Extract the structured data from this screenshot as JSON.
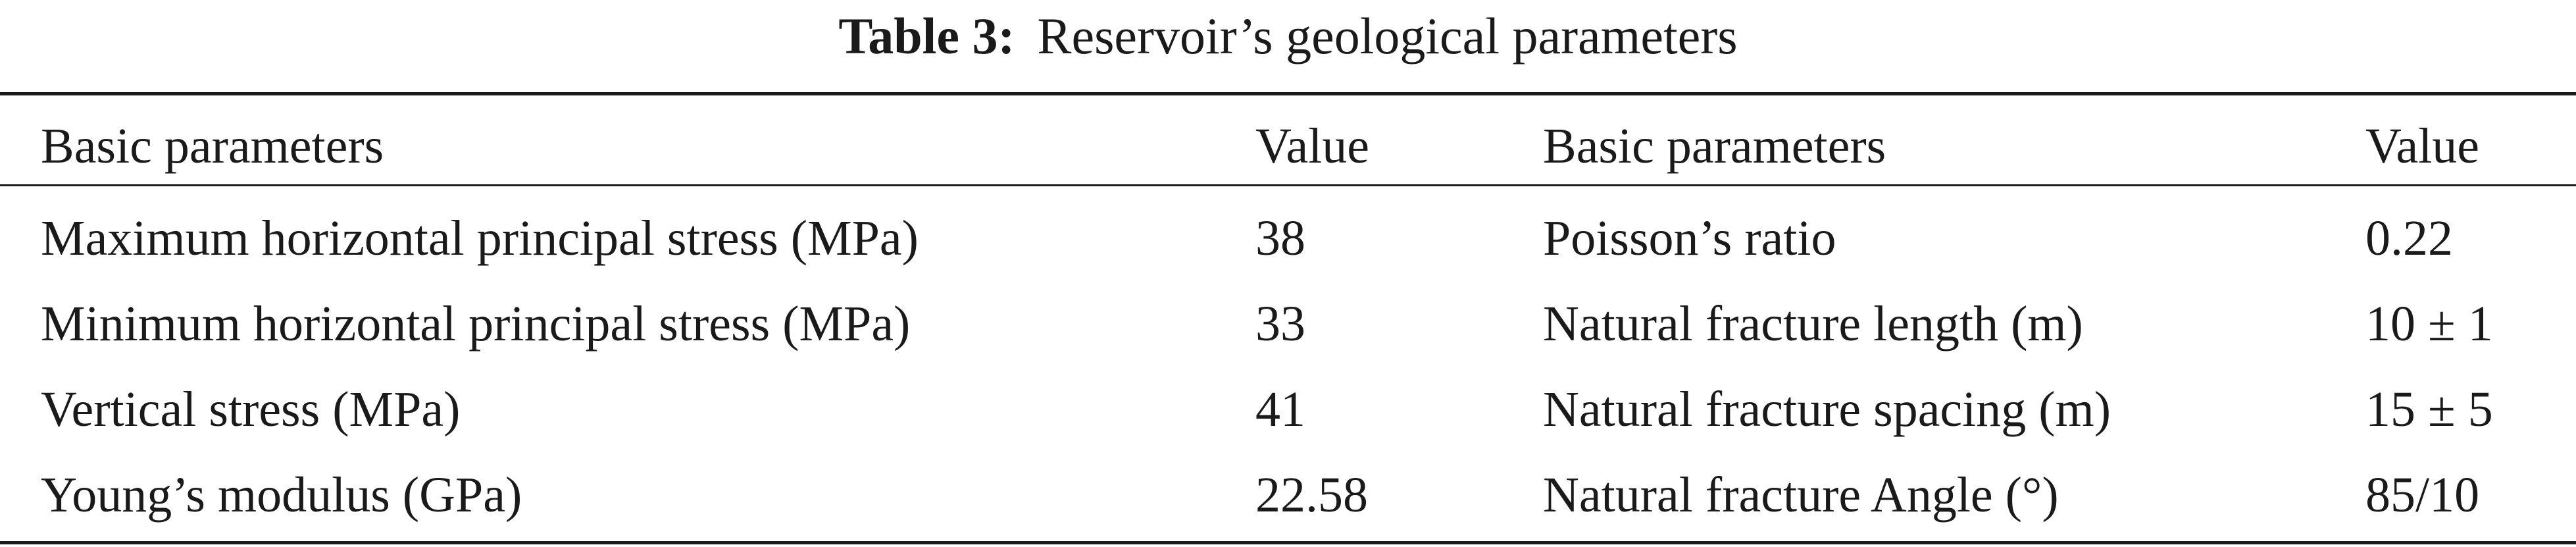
{
  "caption": {
    "label": "Table 3:",
    "text": "Reservoir’s geological parameters"
  },
  "table": {
    "headers": [
      "Basic parameters",
      "Value",
      "Basic parameters",
      "Value"
    ],
    "rows": [
      [
        "Maximum horizontal principal stress (MPa)",
        "38",
        "Poisson’s ratio",
        "0.22"
      ],
      [
        "Minimum horizontal principal stress (MPa)",
        "33",
        "Natural fracture length (m)",
        "10 ± 1"
      ],
      [
        "Vertical stress (MPa)",
        "41",
        "Natural fracture spacing (m)",
        "15 ± 5"
      ],
      [
        "Young’s modulus (GPa)",
        "22.58",
        "Natural fracture Angle (°)",
        "85/10"
      ]
    ]
  }
}
